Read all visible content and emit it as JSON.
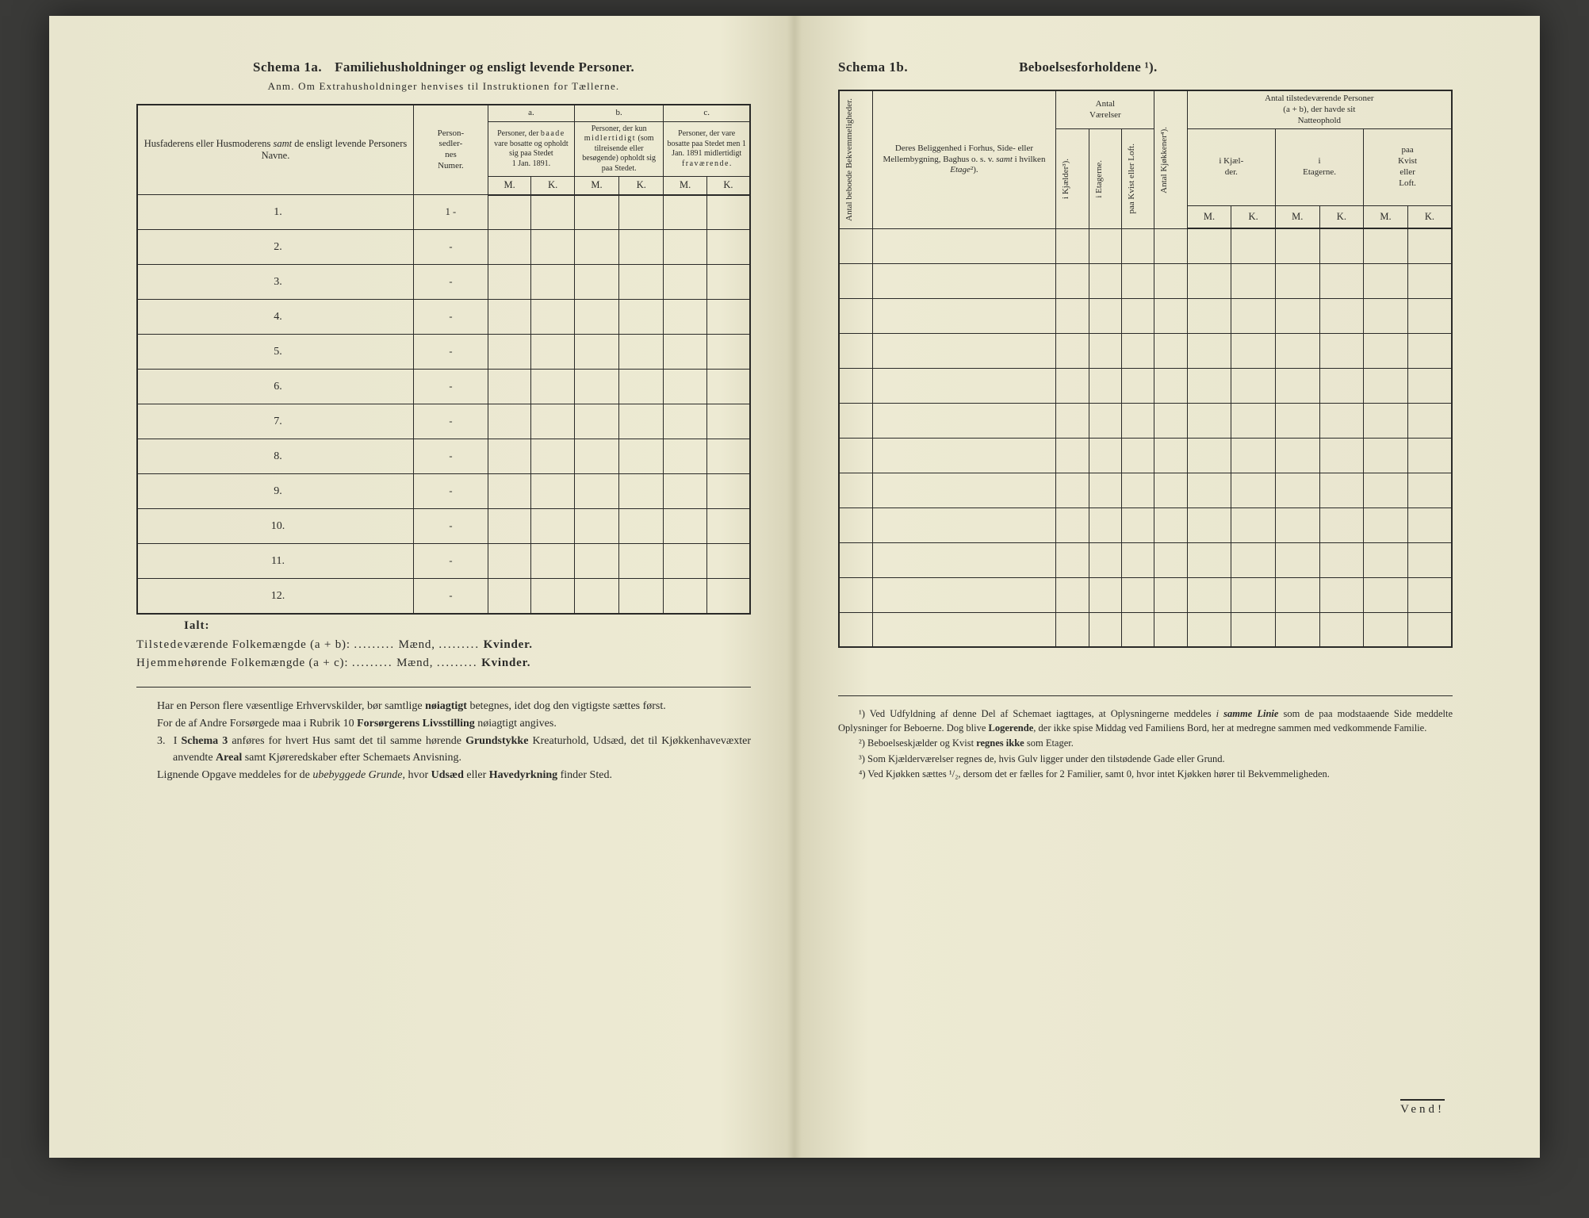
{
  "left": {
    "schema_label": "Schema 1a.",
    "title": "Familiehusholdninger og ensligt levende Personer.",
    "subtitle": "Anm. Om Extrahusholdninger henvises til Instruktionen for Tællerne.",
    "col_names": "Husfaderens eller Husmoderens samt de ensligt levende Personers Navne.",
    "col_numer": "Person-\nsedler-\nnes\nNumer.",
    "group_a": "a.",
    "group_b": "b.",
    "group_c": "c.",
    "head_a": "Personer, der baade vare bosatte og opholdt sig paa Stedet 1 Jan. 1891.",
    "head_b": "Personer, der kun midlertidigt (som tilreisende eller besøgende) opholdt sig paa Stedet.",
    "head_c": "Personer, der vare bosatte paa Stedet men 1 Jan. 1891 midlertidigt fraværende.",
    "M": "M.",
    "K": "K.",
    "rows": [
      "1.",
      "2.",
      "3.",
      "4.",
      "5.",
      "6.",
      "7.",
      "8.",
      "9.",
      "10.",
      "11.",
      "12."
    ],
    "row_marks": [
      "1 -",
      "-",
      "-",
      "-",
      "-",
      "-",
      "-",
      "-",
      "-",
      "-",
      "-",
      "-"
    ],
    "ialt": "Ialt:",
    "sum1_a": "Tilstedeværende Folkemængde (a + b):",
    "sum2_a": "Hjemmehørende Folkemængde (a + c):",
    "dots": ".........",
    "maend": "Mænd,",
    "kvinder": "Kvinder.",
    "body1": "Har en Person flere væsentlige Erhvervskilder, bør samtlige nøiagtigt betegnes, idet dog den vigtigste sættes først.",
    "body2": "For de af Andre Forsørgede maa i Rubrik 10 Forsørgerens Livsstilling nøiagtigt angives.",
    "body3_lead": "3. I Schema 3",
    "body3": " anføres for hvert Hus samt det til samme hørende Grundstykke Kreaturhold, Udsæd, det til Kjøkkenhavevæxter anvendte Areal samt Kjøreredskaber efter Schemaets Anvisning.",
    "body4": "Lignende Opgave meddeles for de ubebyggede Grunde, hvor Udsæd eller Havedyrkning finder Sted."
  },
  "right": {
    "schema_label": "Schema 1b.",
    "title": "Beboelsesforholdene ¹).",
    "col_v1": "Antal beboede\nBekvemmeligheder.",
    "col_belig": "Deres Beliggenhed i Forhus, Side- eller Mellembygning, Baghus o. s. v. samt i hvilken Etage²).",
    "grp_vaer": "Antal\nVærelser",
    "col_kjael": "i Kjælder³).",
    "col_etag": "i Etagerne.",
    "col_kvist": "paa Kvist eller Loft.",
    "col_kjok": "Antal Kjøkkener⁴).",
    "grp_pers": "Antal tilstedeværende Personer (a + b), der havde sit Natteophold",
    "sub_kjael": "i Kjæl-\nder.",
    "sub_etag": "i\nEtagerne.",
    "sub_kvist": "paa\nKvist\neller\nLoft.",
    "M": "M.",
    "K": "K.",
    "row_count": 12,
    "fn1": "¹) Ved Udfyldning af denne Del af Schemaet iagttages, at Oplysningerne meddeles i samme Linie som de paa modstaaende Side meddelte Oplysninger for Beboerne. Dog blive Logerende, der ikke spise Middag ved Familiens Bord, her at medregne sammen med vedkommende Familie.",
    "fn2": "²) Beboelseskjælder og Kvist regnes ikke som Etager.",
    "fn3": "³) Som Kjælderværelser regnes de, hvis Gulv ligger under den tilstødende Gade eller Grund.",
    "fn4": "⁴) Ved Kjøkken sættes ¹/₂, dersom det er fælles for 2 Familier, samt 0, hvor intet Kjøkken hører til Bekvemmeligheden.",
    "vend": "Vend!"
  }
}
